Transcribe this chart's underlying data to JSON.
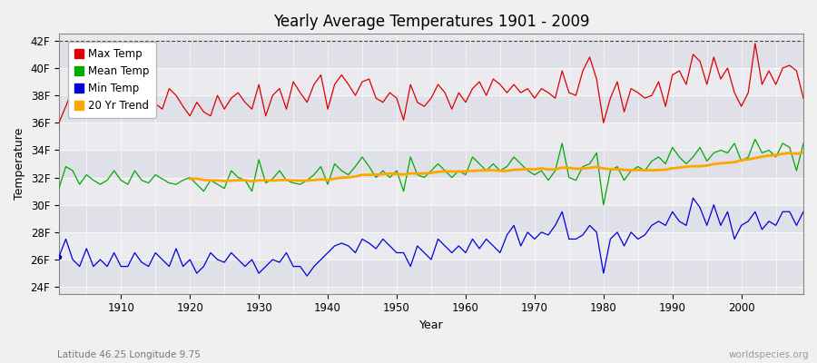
{
  "title": "Yearly Average Temperatures 1901 - 2009",
  "xlabel": "Year",
  "ylabel": "Temperature",
  "bg_color": "#f0f0f0",
  "plot_bg_color": "#e8e8ec",
  "band_color_1": "#e0e0e8",
  "band_color_2": "#eaeaef",
  "grid_color": "#ffffff",
  "years_start": 1901,
  "years_end": 2009,
  "yticks": [
    24,
    26,
    28,
    30,
    32,
    34,
    36,
    38,
    40,
    42
  ],
  "ytick_labels": [
    "24F",
    "26F",
    "28F",
    "30F",
    "32F",
    "34F",
    "36F",
    "38F",
    "40F",
    "42F"
  ],
  "ylim": [
    23.5,
    42.5
  ],
  "xlim": [
    1901,
    2009
  ],
  "max_temp_color": "#dd0000",
  "mean_temp_color": "#00aa00",
  "min_temp_color": "#0000dd",
  "trend_color": "#ffa500",
  "legend_labels": [
    "Max Temp",
    "Mean Temp",
    "Min Temp",
    "20 Yr Trend"
  ],
  "subtitle": "Latitude 46.25 Longitude 9.75",
  "watermark": "worldspecies.org",
  "max_temps": [
    36.0,
    37.2,
    38.5,
    37.5,
    38.0,
    38.5,
    37.2,
    37.8,
    38.2,
    37.0,
    36.8,
    37.5,
    38.2,
    38.8,
    37.4,
    37.0,
    38.5,
    38.0,
    37.2,
    36.5,
    37.5,
    36.8,
    36.5,
    38.0,
    37.0,
    37.8,
    38.2,
    37.5,
    37.0,
    38.8,
    36.5,
    38.0,
    38.5,
    37.0,
    39.0,
    38.2,
    37.5,
    38.8,
    39.5,
    37.0,
    38.8,
    39.5,
    38.8,
    38.0,
    39.0,
    39.2,
    37.8,
    37.5,
    38.2,
    37.8,
    36.2,
    38.8,
    37.5,
    37.2,
    37.8,
    38.8,
    38.2,
    37.0,
    38.2,
    37.5,
    38.5,
    39.0,
    38.0,
    39.2,
    38.8,
    38.2,
    38.8,
    38.2,
    38.5,
    37.8,
    38.5,
    38.2,
    37.8,
    39.8,
    38.2,
    38.0,
    39.8,
    40.8,
    39.2,
    36.0,
    37.8,
    39.0,
    36.8,
    38.5,
    38.2,
    37.8,
    38.0,
    39.0,
    37.2,
    39.5,
    39.8,
    38.8,
    41.0,
    40.5,
    38.8,
    40.8,
    39.2,
    40.0,
    38.2,
    37.2,
    38.2,
    41.8,
    38.8,
    39.8,
    38.8,
    40.0,
    40.2,
    39.8,
    37.8
  ],
  "mean_temps": [
    31.2,
    32.8,
    32.5,
    31.5,
    32.2,
    31.8,
    31.5,
    31.8,
    32.5,
    31.8,
    31.5,
    32.5,
    31.8,
    31.6,
    32.2,
    31.9,
    31.6,
    31.5,
    31.8,
    32.0,
    31.5,
    31.0,
    31.8,
    31.5,
    31.2,
    32.5,
    32.0,
    31.8,
    31.0,
    33.3,
    31.6,
    31.9,
    32.5,
    31.8,
    31.6,
    31.5,
    31.8,
    32.2,
    32.8,
    31.5,
    33.0,
    32.5,
    32.2,
    32.8,
    33.5,
    32.8,
    32.0,
    32.5,
    32.0,
    32.5,
    31.0,
    33.5,
    32.2,
    32.0,
    32.5,
    33.0,
    32.5,
    32.0,
    32.5,
    32.2,
    33.5,
    33.0,
    32.5,
    33.0,
    32.5,
    32.8,
    33.5,
    33.0,
    32.5,
    32.2,
    32.5,
    31.8,
    32.5,
    34.5,
    32.0,
    31.8,
    32.8,
    33.0,
    33.8,
    30.0,
    32.5,
    32.8,
    31.8,
    32.5,
    32.8,
    32.5,
    33.2,
    33.5,
    33.0,
    34.2,
    33.5,
    33.0,
    33.5,
    34.2,
    33.2,
    33.8,
    34.0,
    33.8,
    34.5,
    33.2,
    33.5,
    34.8,
    33.8,
    34.0,
    33.5,
    34.5,
    34.2,
    32.5,
    34.5
  ],
  "min_temps": [
    26.2,
    27.5,
    26.0,
    25.5,
    26.8,
    25.5,
    26.0,
    25.5,
    26.5,
    25.5,
    25.5,
    26.5,
    25.8,
    25.5,
    26.5,
    26.0,
    25.5,
    26.8,
    25.5,
    26.0,
    25.0,
    25.5,
    26.5,
    26.0,
    25.8,
    26.5,
    26.0,
    25.5,
    26.0,
    25.0,
    25.5,
    26.0,
    25.8,
    26.5,
    25.5,
    25.5,
    24.8,
    25.5,
    26.0,
    26.5,
    27.0,
    27.2,
    27.0,
    26.5,
    27.5,
    27.2,
    26.8,
    27.5,
    27.0,
    26.5,
    26.5,
    25.5,
    27.0,
    26.5,
    26.0,
    27.5,
    27.0,
    26.5,
    27.0,
    26.5,
    27.5,
    26.8,
    27.5,
    27.0,
    26.5,
    27.8,
    28.5,
    27.0,
    28.0,
    27.5,
    28.0,
    27.8,
    28.5,
    29.5,
    27.5,
    27.5,
    27.8,
    28.5,
    28.0,
    25.0,
    27.5,
    28.0,
    27.0,
    28.0,
    27.5,
    27.8,
    28.5,
    28.8,
    28.5,
    29.5,
    28.8,
    28.5,
    30.5,
    29.8,
    28.5,
    30.0,
    28.5,
    29.5,
    27.5,
    28.5,
    28.8,
    29.5,
    28.2,
    28.8,
    28.5,
    29.5,
    29.5,
    28.5,
    29.5
  ]
}
